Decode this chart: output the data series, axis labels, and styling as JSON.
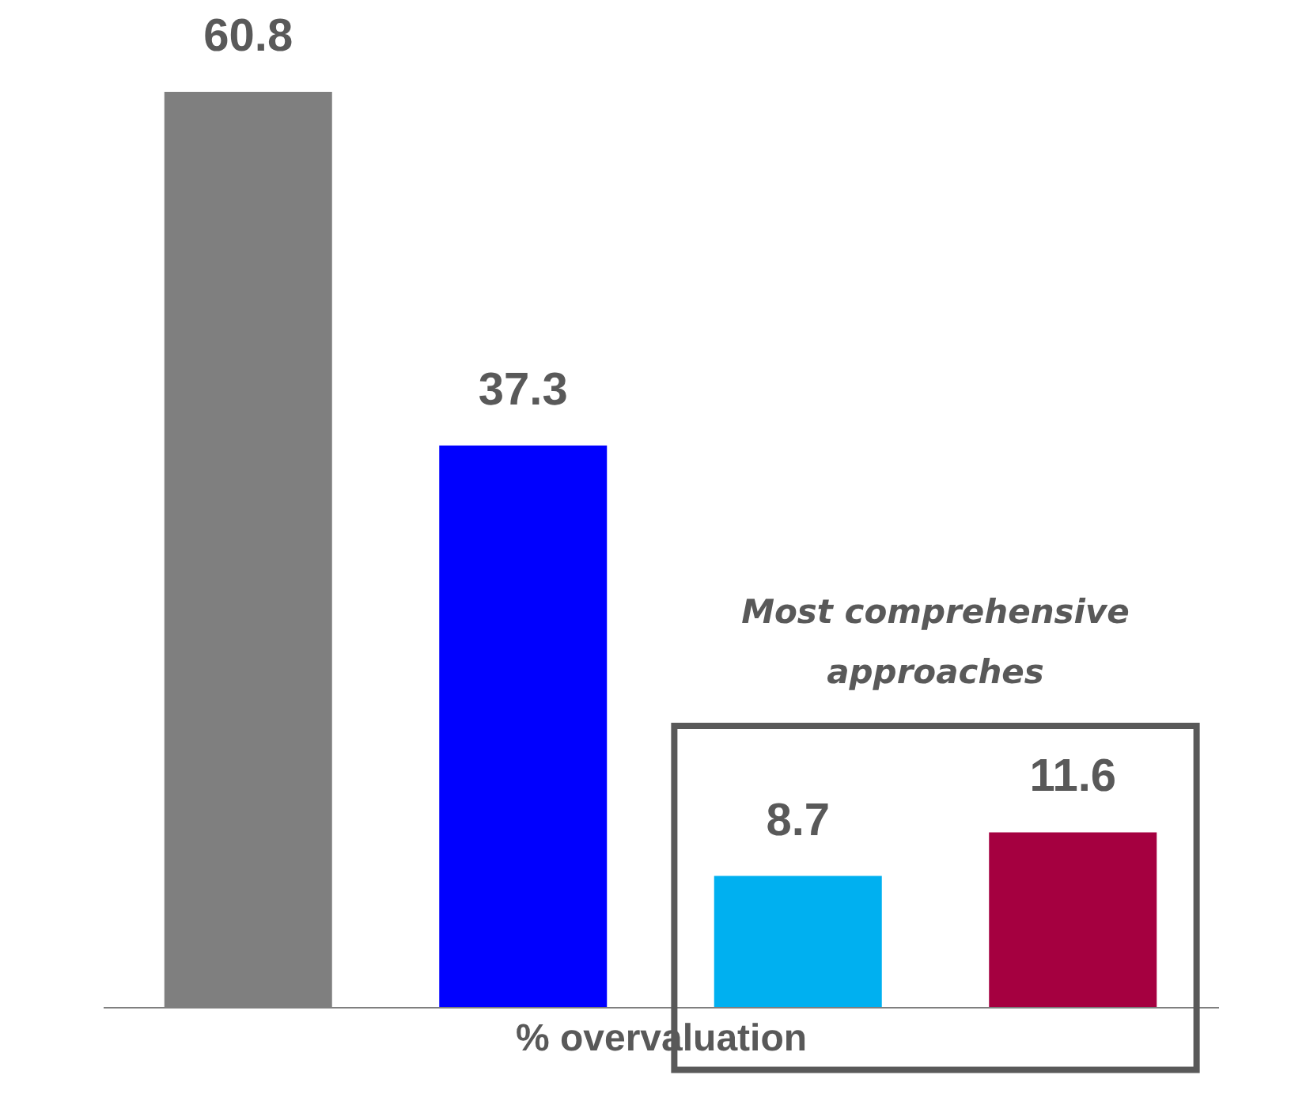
{
  "chart_data": {
    "type": "bar",
    "xlabel": "% overvaluation",
    "categories": [
      null,
      null,
      null,
      null
    ],
    "values": [
      60.8,
      37.3,
      8.7,
      11.6
    ],
    "colors": [
      "#7f7f7f",
      "#0000ff",
      "#00b0f0",
      "#a50040"
    ],
    "data_labels": true,
    "annotations": [
      "Most comprehensive\napproaches"
    ]
  }
}
